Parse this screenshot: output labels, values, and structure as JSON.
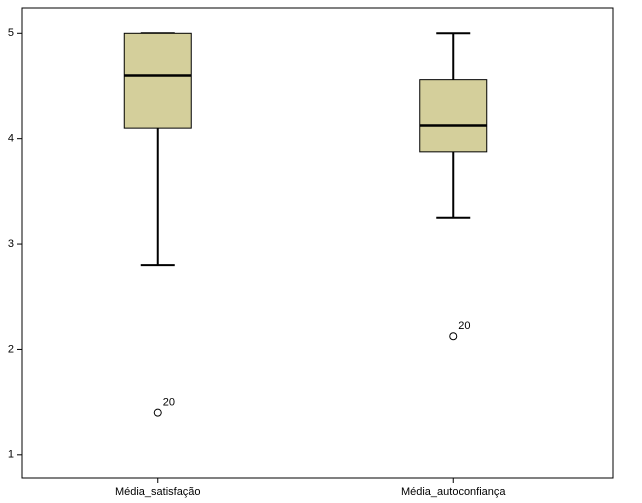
{
  "chart_data": {
    "type": "box",
    "categories": [
      "Média_satisfação",
      "Média_autoconfiança"
    ],
    "boxes": [
      {
        "min": 2.8,
        "q1": 4.1,
        "median": 4.6,
        "q3": 5.0,
        "max": 5.0,
        "outliers": [
          {
            "value": 1.4,
            "case": "20"
          }
        ]
      },
      {
        "min": 3.25,
        "q1": 3.875,
        "median": 4.125,
        "q3": 4.56,
        "max": 5.0,
        "outliers": [
          {
            "value": 2.125,
            "case": "20"
          }
        ]
      }
    ],
    "color": "#d4cf9b",
    "ylim": [
      0.78,
      5.24
    ],
    "yticks": [
      1,
      2,
      3,
      4,
      5
    ]
  }
}
